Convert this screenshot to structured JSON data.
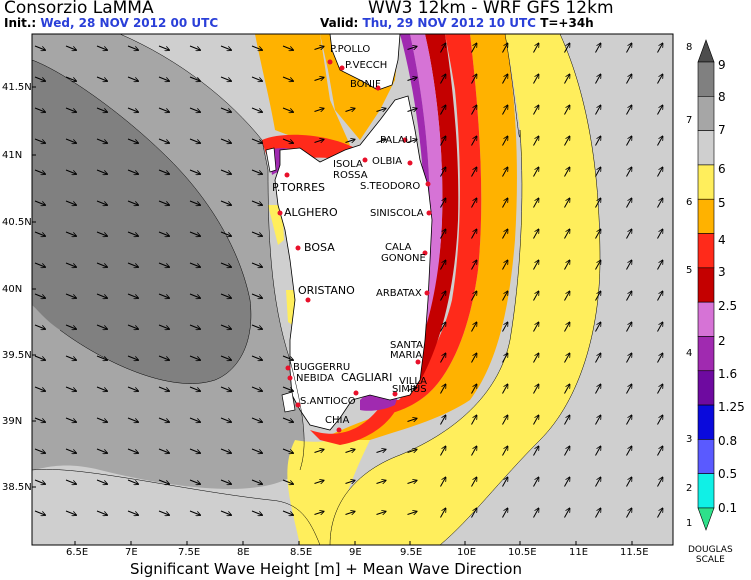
{
  "header": {
    "provider": "Consorzio LaMMA",
    "model": "WW3 12km - WRF GFS 12km",
    "init_label": "Init.:",
    "init_value": "Wed, 28 NOV 2012   00 UTC",
    "valid_label": "Valid:",
    "valid_value": "Thu, 29 NOV 2012   10 UTC",
    "lead_time": "T=+34h"
  },
  "footer": {
    "title": "Significant Wave Height [m] + Mean Wave Direction"
  },
  "axes": {
    "longitudes": [
      "6.5E",
      "7E",
      "7.5E",
      "8E",
      "8.5E",
      "9E",
      "9.5E",
      "10E",
      "10.5E",
      "11E",
      "11.5E"
    ],
    "latitudes": [
      "41.5N",
      "41N",
      "40.5N",
      "40N",
      "39.5N",
      "39N",
      "38.5N"
    ]
  },
  "places": {
    "p_pollo": "P.POLLO",
    "p_vecch": "P.VECCH",
    "bonif": "BONIF",
    "palau": "PALAU",
    "olbia": "OLBIA",
    "isola_rossa_1": "ISOLA",
    "isola_rossa_2": "ROSSA",
    "p_torres": "P.TORRES",
    "s_teodoro": "S.TEODORO",
    "alghero": "ALGHERO",
    "siniscola": "SINISCOLA",
    "bosa": "BOSA",
    "cala_gonone_1": "CALA",
    "cala_gonone_2": "GONONE",
    "oristano": "ORISTANO",
    "arbatax": "ARBATAX",
    "santa_maria_1": "SANTA",
    "santa_maria_2": "MARIA",
    "buggerru": "BUGGERRU",
    "nebida": "NEBIDA",
    "cagliari": "CAGLIARI",
    "villasimius_1": "VILLA",
    "villasimius_2": "SIMIUS",
    "s_antioco": "S.ANTIOCO",
    "chia": "CHIA"
  },
  "colorbar": {
    "title_1": "DOUGLAS",
    "title_2": "SCALE",
    "wave_labels": [
      "9",
      "8",
      "7",
      "6",
      "5",
      "4",
      "3",
      "2.5",
      "2",
      "1.6",
      "1.25",
      "0.8",
      "0.5",
      "0.1"
    ],
    "douglas_labels": [
      "8",
      "7",
      "6",
      "5",
      "4",
      "3",
      "2",
      "1"
    ],
    "colors": [
      "#4d4d4d",
      "#808080",
      "#a6a6a6",
      "#cfcfcf",
      "#ffee5c",
      "#ffb200",
      "#ff2a1a",
      "#c40000",
      "#d673d6",
      "#a02ab0",
      "#6e0aa0",
      "#0a0adc",
      "#5a5aff",
      "#10f0e6",
      "#2ee08a"
    ]
  }
}
